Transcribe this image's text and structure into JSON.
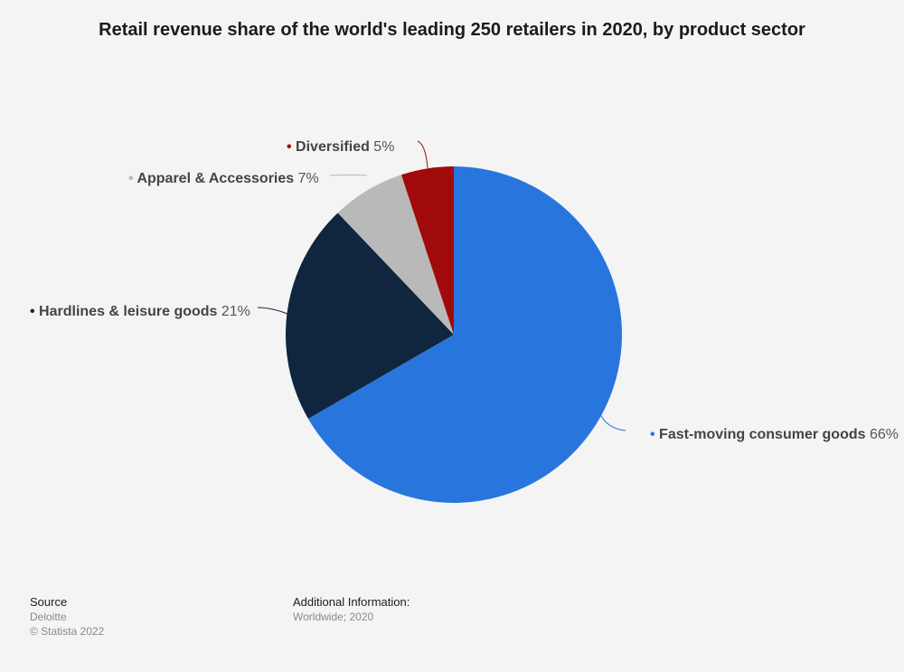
{
  "chart_data": {
    "type": "pie",
    "title": "Retail revenue share of the world's leading 250 retailers in 2020, by product sector",
    "unit": "%",
    "slices": [
      {
        "label": "Fast-moving consumer goods",
        "value": 66,
        "color": "#2876dd"
      },
      {
        "label": "Hardlines & leisure goods",
        "value": 21,
        "color": "#10263e"
      },
      {
        "label": "Apparel & Accessories",
        "value": 7,
        "color": "#b9b9b9"
      },
      {
        "label": "Diversified",
        "value": 5,
        "color": "#a10a0c"
      }
    ]
  },
  "footer": {
    "source_heading": "Source",
    "source_name": "Deloitte",
    "copyright": "© Statista 2022",
    "additional_heading": "Additional Information:",
    "additional_text": "Worldwide; 2020"
  }
}
